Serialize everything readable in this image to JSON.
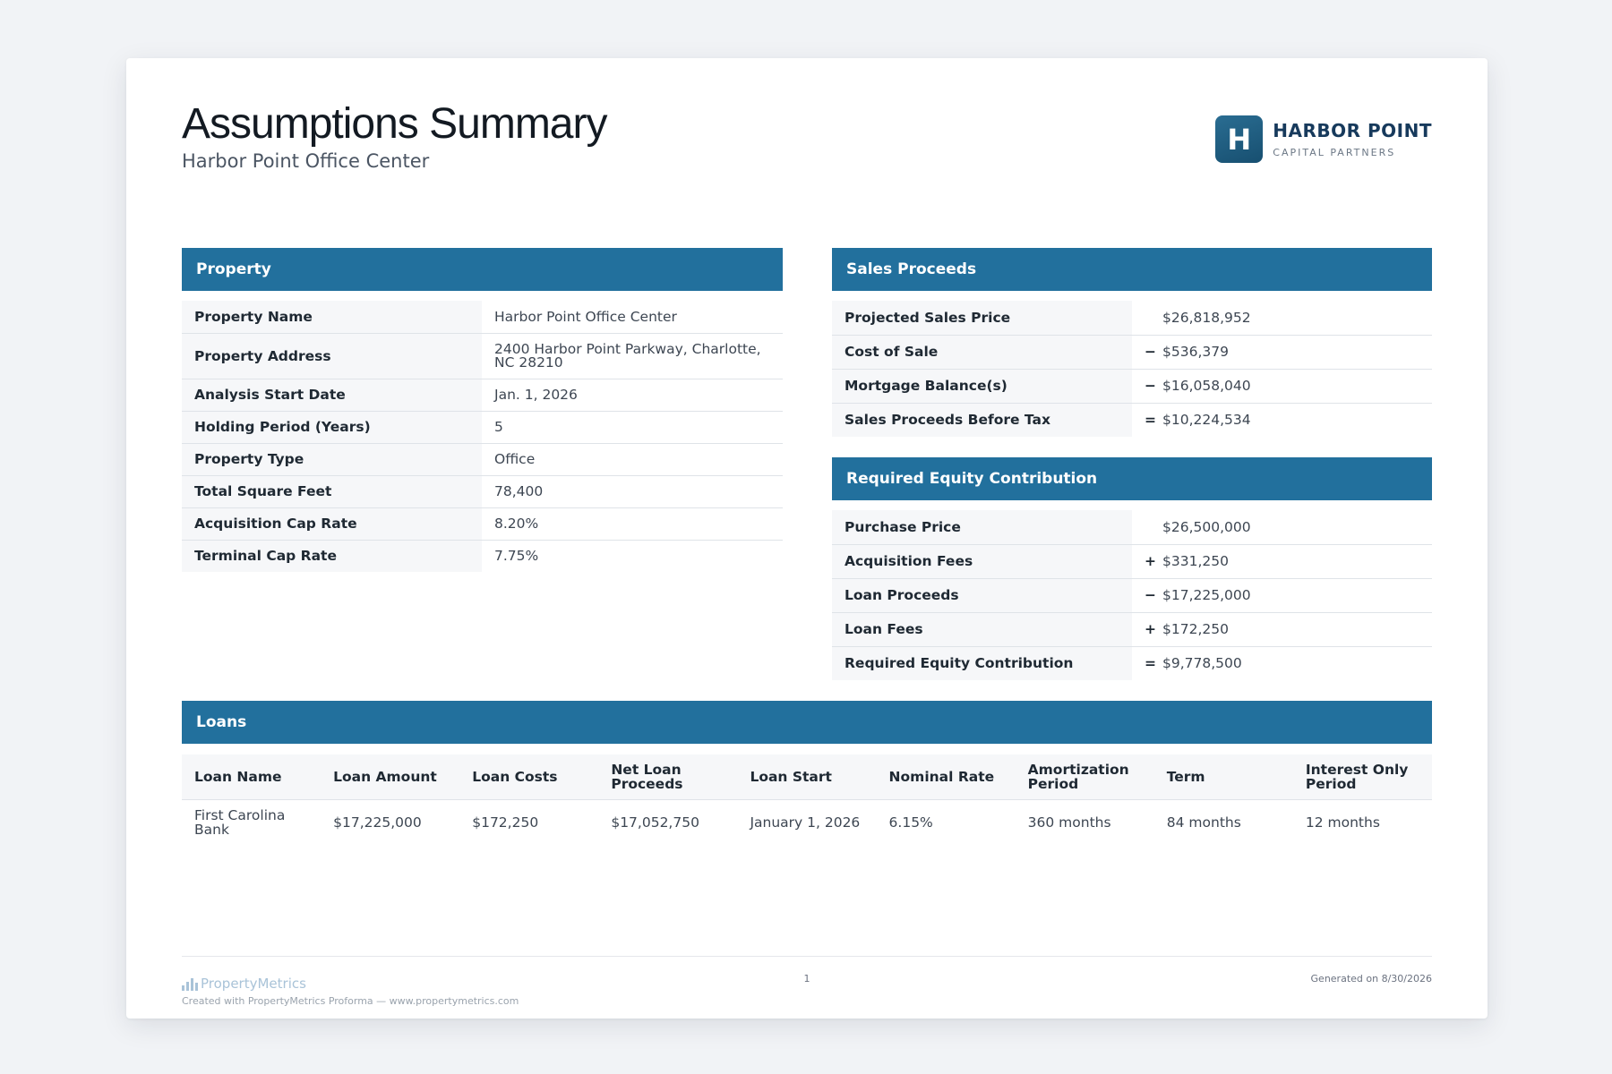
{
  "header": {
    "title": "Assumptions Summary",
    "subtitle": "Harbor Point Office Center",
    "logo": {
      "letter": "H",
      "name": "HARBOR POINT",
      "tagline": "CAPITAL PARTNERS"
    }
  },
  "property": {
    "title": "Property",
    "rows": [
      {
        "label": "Property Name",
        "value": "Harbor Point Office Center"
      },
      {
        "label": "Property Address",
        "value": "2400 Harbor Point Parkway, Charlotte, NC 28210"
      },
      {
        "label": "Analysis Start Date",
        "value": "Jan. 1, 2026"
      },
      {
        "label": "Holding Period (Years)",
        "value": "5"
      },
      {
        "label": "Property Type",
        "value": "Office"
      },
      {
        "label": "Total Square Feet",
        "value": "78,400"
      },
      {
        "label": "Acquisition Cap Rate",
        "value": "8.20%"
      },
      {
        "label": "Terminal Cap Rate",
        "value": "7.75%"
      }
    ]
  },
  "sales": {
    "title": "Sales Proceeds",
    "rows": [
      {
        "label": "Projected Sales Price",
        "op": "",
        "value": "$26,818,952"
      },
      {
        "label": "Cost of Sale",
        "op": "−",
        "value": "$536,379"
      },
      {
        "label": "Mortgage Balance(s)",
        "op": "−",
        "value": "$16,058,040"
      },
      {
        "label": "Sales Proceeds Before Tax",
        "op": "=",
        "value": "$10,224,534"
      }
    ]
  },
  "equity": {
    "title": "Required Equity Contribution",
    "rows": [
      {
        "label": "Purchase Price",
        "op": "",
        "value": "$26,500,000"
      },
      {
        "label": "Acquisition Fees",
        "op": "+",
        "value": "$331,250"
      },
      {
        "label": "Loan Proceeds",
        "op": "−",
        "value": "$17,225,000"
      },
      {
        "label": "Loan Fees",
        "op": "+",
        "value": "$172,250"
      },
      {
        "label": "Required Equity Contribution",
        "op": "=",
        "value": "$9,778,500"
      }
    ]
  },
  "loans": {
    "title": "Loans",
    "columns": [
      "Loan Name",
      "Loan Amount",
      "Loan Costs",
      "Net Loan Proceeds",
      "Loan Start",
      "Nominal Rate",
      "Amortization Period",
      "Term",
      "Interest Only Period"
    ],
    "rows": [
      [
        "First Carolina Bank",
        "$17,225,000",
        "$172,250",
        "$17,052,750",
        "January 1, 2026",
        "6.15%",
        "360 months",
        "84 months",
        "12 months"
      ]
    ]
  },
  "footer": {
    "brand": "PropertyMetrics",
    "created": "Created with PropertyMetrics Proforma — www.propertymetrics.com",
    "page": "1",
    "generated": "Generated on 8/30/2026"
  }
}
